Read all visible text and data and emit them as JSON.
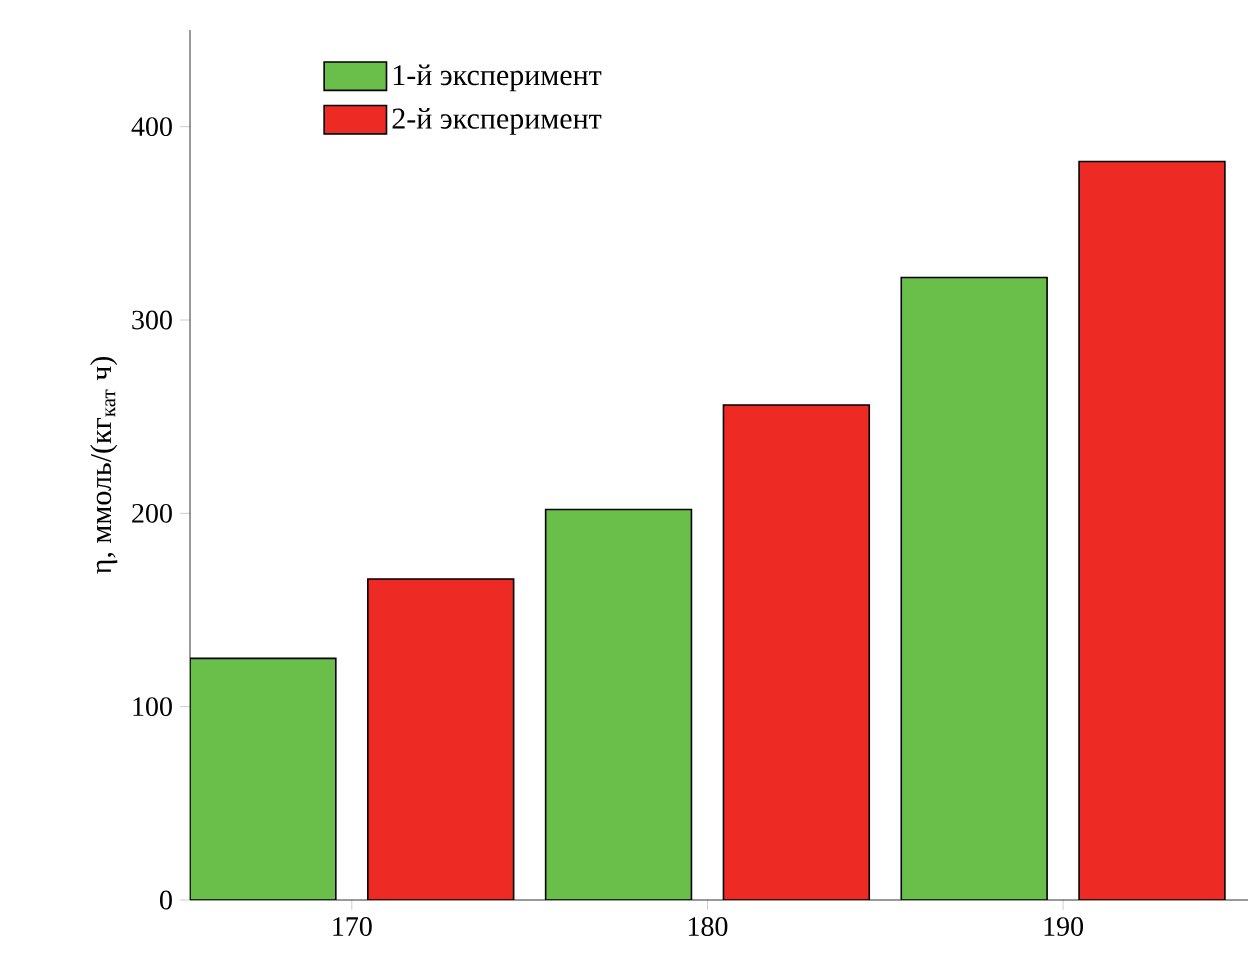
{
  "chart_data": {
    "type": "bar",
    "ylabel": "η, ммоль/(кг$_{кат}$ ч)",
    "categories": [
      "170",
      "180",
      "190"
    ],
    "series": [
      {
        "name": "1-й эксперимент",
        "color": "#6abf4b",
        "values": [
          125,
          202,
          322
        ]
      },
      {
        "name": "2-й эксперимент",
        "color": "#ee2a24",
        "values": [
          166,
          256,
          382
        ]
      }
    ],
    "ylim": [
      0,
      450
    ],
    "yticks": [
      0,
      100,
      200,
      300,
      400
    ],
    "grid": false,
    "legend": "top left"
  }
}
